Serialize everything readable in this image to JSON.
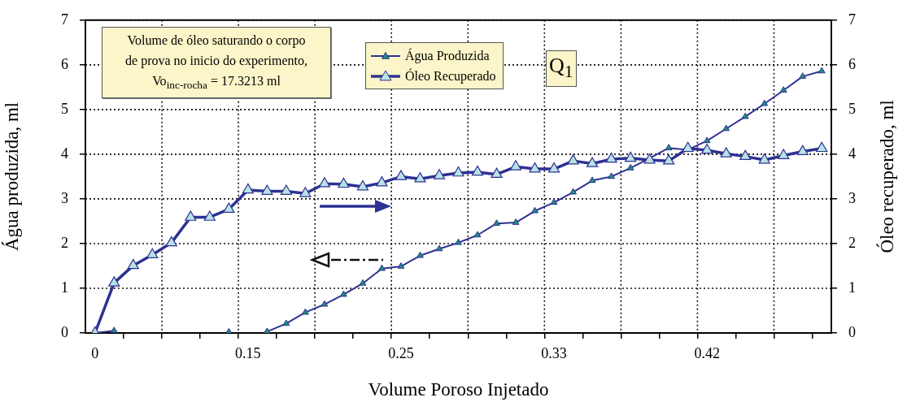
{
  "chart_data": {
    "type": "line",
    "xlabel": "Volume Poroso Injetado",
    "ylabel": "Água produzida, ml",
    "y2label": "Óleo recuperado, ml",
    "categories": [
      "0",
      null,
      null,
      null,
      null,
      null,
      null,
      null,
      "0.15",
      null,
      null,
      null,
      null,
      null,
      null,
      null,
      "0.25",
      null,
      null,
      null,
      null,
      null,
      null,
      null,
      "0.33",
      null,
      null,
      null,
      null,
      null,
      null,
      null,
      "0.42",
      null,
      null,
      null,
      null,
      null,
      null
    ],
    "series": [
      {
        "name": "Água Produzida",
        "color": "#2e3192",
        "values": [
          0,
          0.05,
          null,
          null,
          null,
          null,
          null,
          0.02,
          null,
          0.03,
          0.21,
          0.46,
          0.64,
          0.86,
          1.11,
          1.44,
          1.49,
          1.73,
          1.88,
          2.02,
          2.19,
          2.45,
          2.47,
          2.73,
          2.92,
          3.15,
          3.41,
          3.5,
          3.69,
          3.91,
          4.14,
          4.1,
          4.3,
          4.57,
          4.84,
          5.13,
          5.43,
          5.74,
          5.86
        ]
      },
      {
        "name": "Óleo Recuperado",
        "color": "#2e3192",
        "axis": "y2",
        "values": [
          0,
          1.12,
          1.51,
          1.75,
          2.02,
          2.59,
          2.59,
          2.77,
          3.2,
          3.17,
          3.17,
          3.12,
          3.34,
          3.33,
          3.27,
          3.36,
          3.5,
          3.45,
          3.52,
          3.58,
          3.6,
          3.55,
          3.72,
          3.67,
          3.67,
          3.85,
          3.79,
          3.89,
          3.91,
          3.87,
          3.85,
          4.13,
          4.09,
          4.01,
          3.95,
          3.87,
          3.97,
          4.06,
          4.13
        ]
      }
    ],
    "ylim": [
      0,
      7
    ],
    "yticks": [
      0,
      1,
      2,
      3,
      4,
      5,
      6,
      7
    ],
    "y2lim": [
      0,
      7
    ],
    "y2ticks": [
      0,
      1,
      2,
      3,
      4,
      5,
      6,
      7
    ],
    "grid": true,
    "legend": "top",
    "marker": "triangle",
    "annotations": [
      "Volume de óleo saturando o corpo\nde prova no inicio do experimento,\nVo$_{inc-rocha}$ = 17.3213 ml",
      "Q$_{1}$"
    ]
  }
}
